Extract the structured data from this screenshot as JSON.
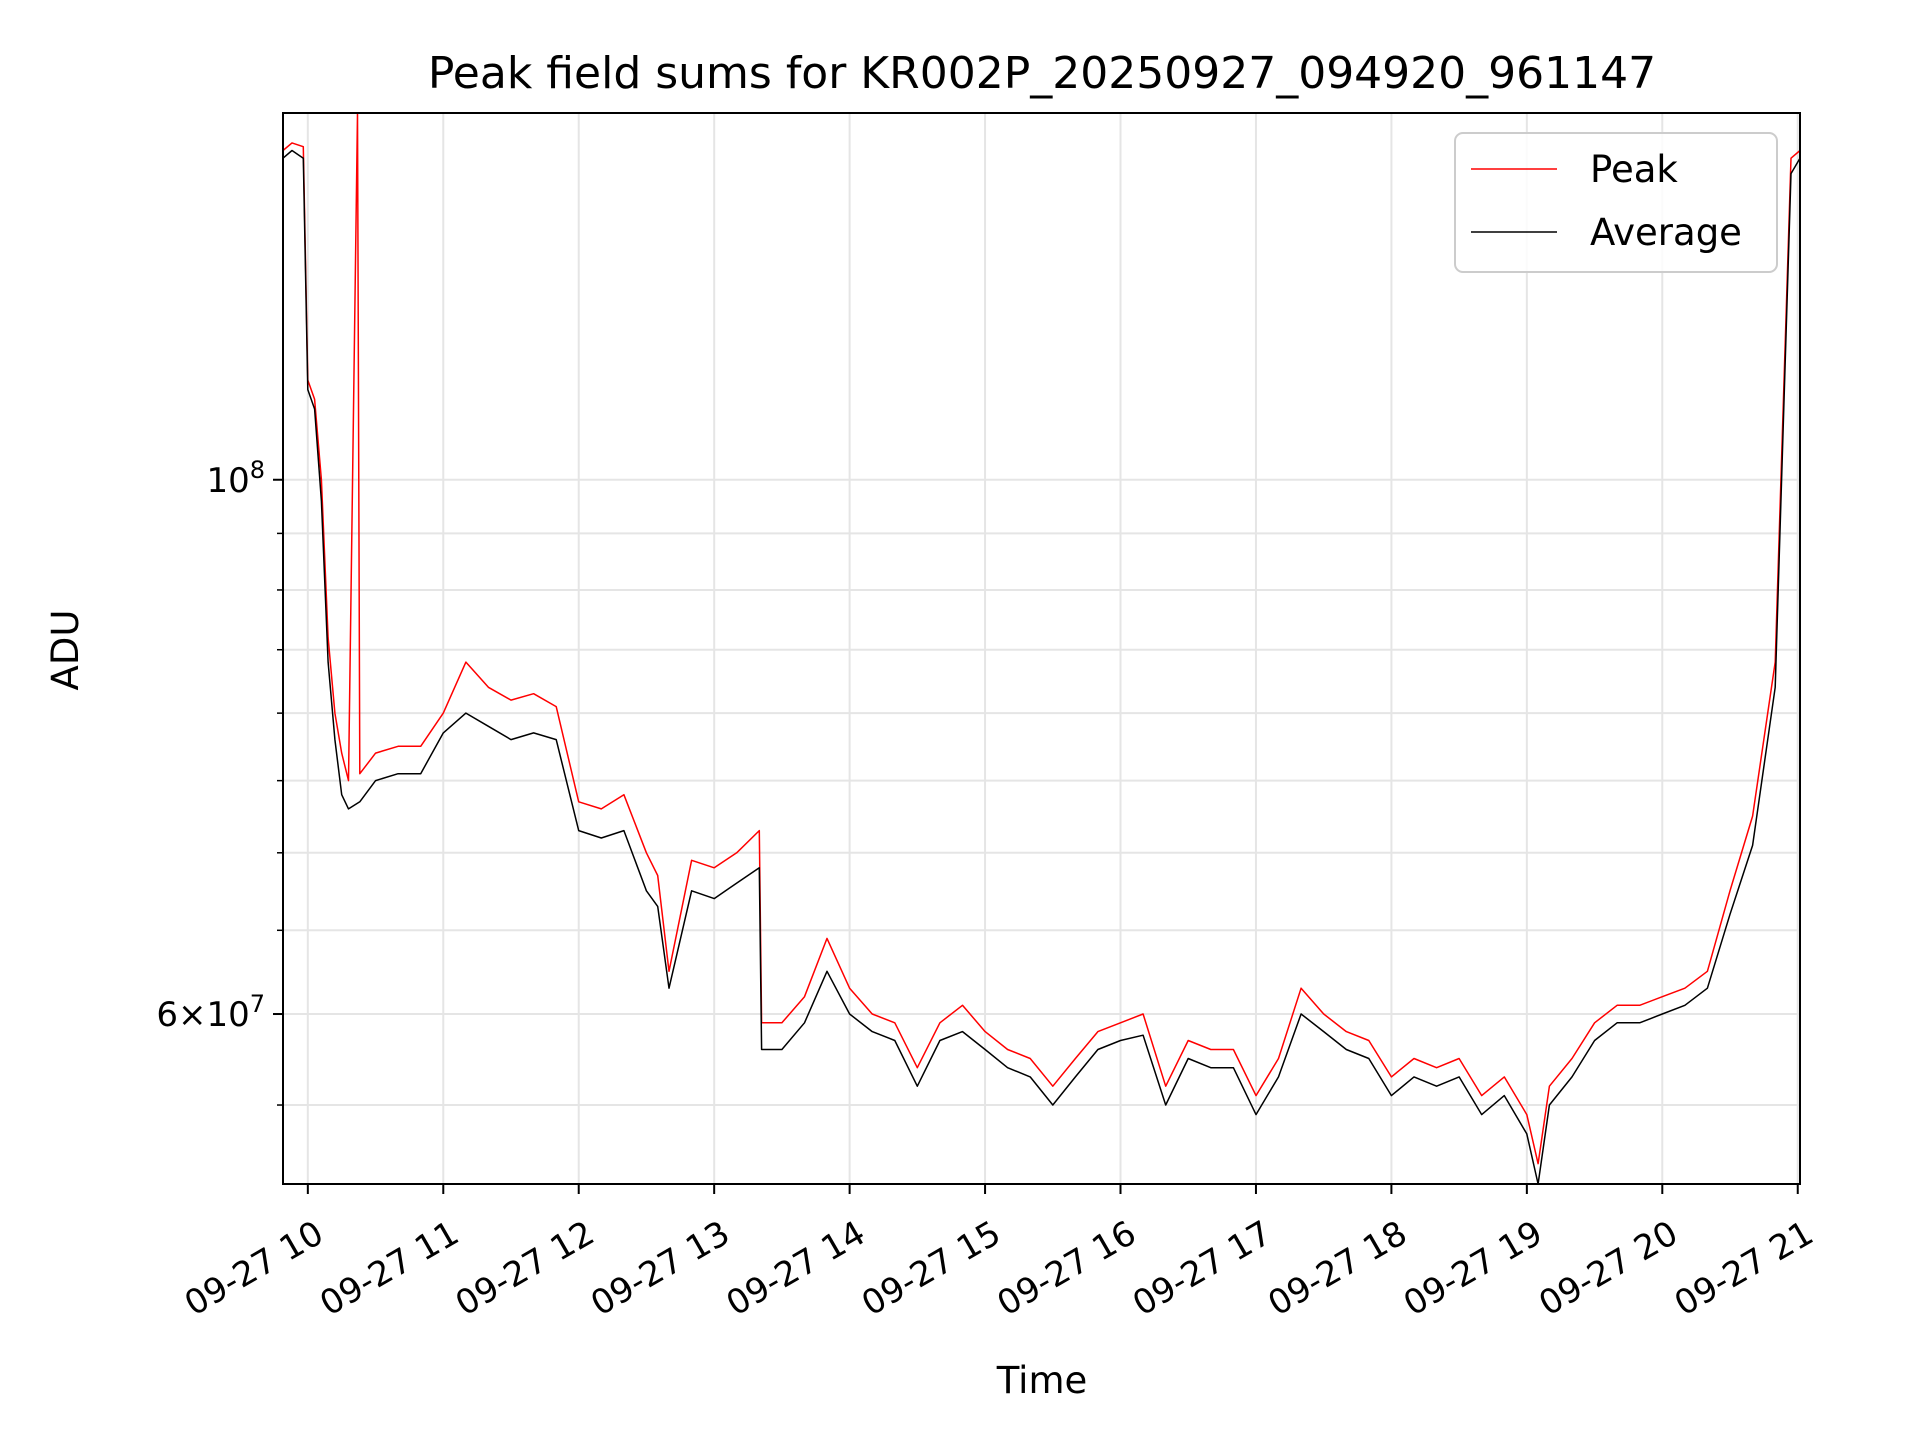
{
  "chart_data": {
    "type": "line",
    "title": "Peak field sums for KR002P_20250927_094920_961147",
    "xlabel": "Time",
    "ylabel": "ADU",
    "y_scale": "log",
    "grid": true,
    "legend_position": "top-right",
    "xlim": [
      "2025-09-27 09:49",
      "2025-09-27 21:01"
    ],
    "ylim": [
      51000000,
      142000000
    ],
    "x_ticks": [
      {
        "time": "2025-09-27 10:00",
        "label": "09-27 10"
      },
      {
        "time": "2025-09-27 11:00",
        "label": "09-27 11"
      },
      {
        "time": "2025-09-27 12:00",
        "label": "09-27 12"
      },
      {
        "time": "2025-09-27 13:00",
        "label": "09-27 13"
      },
      {
        "time": "2025-09-27 14:00",
        "label": "09-27 14"
      },
      {
        "time": "2025-09-27 15:00",
        "label": "09-27 15"
      },
      {
        "time": "2025-09-27 16:00",
        "label": "09-27 16"
      },
      {
        "time": "2025-09-27 17:00",
        "label": "09-27 17"
      },
      {
        "time": "2025-09-27 18:00",
        "label": "09-27 18"
      },
      {
        "time": "2025-09-27 19:00",
        "label": "09-27 19"
      },
      {
        "time": "2025-09-27 20:00",
        "label": "09-27 20"
      },
      {
        "time": "2025-09-27 21:00",
        "label": "09-27 21"
      }
    ],
    "y_major_ticks": [
      {
        "value": 100000000,
        "label_base": "10",
        "label_exp": "8"
      },
      {
        "value": 60000000,
        "label_base": "6×10",
        "label_exp": "7"
      }
    ],
    "y_minor_ticks": [
      55000000,
      65000000,
      70000000,
      75000000,
      80000000,
      85000000,
      90000000,
      95000000
    ],
    "series": [
      {
        "name": "Peak",
        "color": "#ff0000",
        "points": [
          [
            "2025-09-27 09:49",
            137000000
          ],
          [
            "2025-09-27 09:53",
            138000000
          ],
          [
            "2025-09-27 09:58",
            137500000
          ],
          [
            "2025-09-27 10:00",
            110000000
          ],
          [
            "2025-09-27 10:03",
            108000000
          ],
          [
            "2025-09-27 10:06",
            100000000
          ],
          [
            "2025-09-27 10:09",
            86000000
          ],
          [
            "2025-09-27 10:12",
            80000000
          ],
          [
            "2025-09-27 10:15",
            77000000
          ],
          [
            "2025-09-27 10:18",
            75000000
          ],
          [
            "2025-09-27 10:22",
            142000000
          ],
          [
            "2025-09-27 10:23",
            75500000
          ],
          [
            "2025-09-27 10:30",
            77000000
          ],
          [
            "2025-09-27 10:40",
            77500000
          ],
          [
            "2025-09-27 10:50",
            77500000
          ],
          [
            "2025-09-27 11:00",
            80000000
          ],
          [
            "2025-09-27 11:10",
            84000000
          ],
          [
            "2025-09-27 11:20",
            82000000
          ],
          [
            "2025-09-27 11:30",
            81000000
          ],
          [
            "2025-09-27 11:40",
            81500000
          ],
          [
            "2025-09-27 11:50",
            80500000
          ],
          [
            "2025-09-27 12:00",
            73500000
          ],
          [
            "2025-09-27 12:10",
            73000000
          ],
          [
            "2025-09-27 12:20",
            74000000
          ],
          [
            "2025-09-27 12:30",
            70000000
          ],
          [
            "2025-09-27 12:35",
            68500000
          ],
          [
            "2025-09-27 12:40",
            62500000
          ],
          [
            "2025-09-27 12:50",
            69500000
          ],
          [
            "2025-09-27 13:00",
            69000000
          ],
          [
            "2025-09-27 13:10",
            70000000
          ],
          [
            "2025-09-27 13:20",
            71500000
          ],
          [
            "2025-09-27 13:21",
            59500000
          ],
          [
            "2025-09-27 13:30",
            59500000
          ],
          [
            "2025-09-27 13:40",
            61000000
          ],
          [
            "2025-09-27 13:50",
            64500000
          ],
          [
            "2025-09-27 14:00",
            61500000
          ],
          [
            "2025-09-27 14:10",
            60000000
          ],
          [
            "2025-09-27 14:20",
            59500000
          ],
          [
            "2025-09-27 14:30",
            57000000
          ],
          [
            "2025-09-27 14:40",
            59500000
          ],
          [
            "2025-09-27 14:50",
            60500000
          ],
          [
            "2025-09-27 15:00",
            59000000
          ],
          [
            "2025-09-27 15:10",
            58000000
          ],
          [
            "2025-09-27 15:20",
            57500000
          ],
          [
            "2025-09-27 15:30",
            56000000
          ],
          [
            "2025-09-27 15:40",
            57500000
          ],
          [
            "2025-09-27 15:50",
            59000000
          ],
          [
            "2025-09-27 16:00",
            59500000
          ],
          [
            "2025-09-27 16:10",
            60000000
          ],
          [
            "2025-09-27 16:20",
            56000000
          ],
          [
            "2025-09-27 16:30",
            58500000
          ],
          [
            "2025-09-27 16:40",
            58000000
          ],
          [
            "2025-09-27 16:50",
            58000000
          ],
          [
            "2025-09-27 17:00",
            55500000
          ],
          [
            "2025-09-27 17:10",
            57500000
          ],
          [
            "2025-09-27 17:20",
            61500000
          ],
          [
            "2025-09-27 17:30",
            60000000
          ],
          [
            "2025-09-27 17:40",
            59000000
          ],
          [
            "2025-09-27 17:50",
            58500000
          ],
          [
            "2025-09-27 18:00",
            56500000
          ],
          [
            "2025-09-27 18:10",
            57500000
          ],
          [
            "2025-09-27 18:20",
            57000000
          ],
          [
            "2025-09-27 18:30",
            57500000
          ],
          [
            "2025-09-27 18:40",
            55500000
          ],
          [
            "2025-09-27 18:50",
            56500000
          ],
          [
            "2025-09-27 19:00",
            54500000
          ],
          [
            "2025-09-27 19:05",
            52000000
          ],
          [
            "2025-09-27 19:10",
            56000000
          ],
          [
            "2025-09-27 19:20",
            57500000
          ],
          [
            "2025-09-27 19:30",
            59500000
          ],
          [
            "2025-09-27 19:40",
            60500000
          ],
          [
            "2025-09-27 19:50",
            60500000
          ],
          [
            "2025-09-27 20:00",
            61000000
          ],
          [
            "2025-09-27 20:10",
            61500000
          ],
          [
            "2025-09-27 20:20",
            62500000
          ],
          [
            "2025-09-27 20:30",
            67500000
          ],
          [
            "2025-09-27 20:40",
            72500000
          ],
          [
            "2025-09-27 20:50",
            84000000
          ],
          [
            "2025-09-27 20:57",
            136000000
          ],
          [
            "2025-09-27 21:01",
            137000000
          ]
        ]
      },
      {
        "name": "Average",
        "color": "#000000",
        "points": [
          [
            "2025-09-27 09:49",
            136000000
          ],
          [
            "2025-09-27 09:53",
            137000000
          ],
          [
            "2025-09-27 09:58",
            136000000
          ],
          [
            "2025-09-27 10:00",
            109000000
          ],
          [
            "2025-09-27 10:03",
            107000000
          ],
          [
            "2025-09-27 10:06",
            98000000
          ],
          [
            "2025-09-27 10:09",
            84000000
          ],
          [
            "2025-09-27 10:12",
            78000000
          ],
          [
            "2025-09-27 10:15",
            74000000
          ],
          [
            "2025-09-27 10:18",
            73000000
          ],
          [
            "2025-09-27 10:23",
            73500000
          ],
          [
            "2025-09-27 10:30",
            75000000
          ],
          [
            "2025-09-27 10:40",
            75500000
          ],
          [
            "2025-09-27 10:50",
            75500000
          ],
          [
            "2025-09-27 11:00",
            78500000
          ],
          [
            "2025-09-27 11:10",
            80000000
          ],
          [
            "2025-09-27 11:20",
            79000000
          ],
          [
            "2025-09-27 11:30",
            78000000
          ],
          [
            "2025-09-27 11:40",
            78500000
          ],
          [
            "2025-09-27 11:50",
            78000000
          ],
          [
            "2025-09-27 12:00",
            71500000
          ],
          [
            "2025-09-27 12:10",
            71000000
          ],
          [
            "2025-09-27 12:20",
            71500000
          ],
          [
            "2025-09-27 12:30",
            67500000
          ],
          [
            "2025-09-27 12:35",
            66500000
          ],
          [
            "2025-09-27 12:40",
            61500000
          ],
          [
            "2025-09-27 12:50",
            67500000
          ],
          [
            "2025-09-27 13:00",
            67000000
          ],
          [
            "2025-09-27 13:10",
            68000000
          ],
          [
            "2025-09-27 13:20",
            69000000
          ],
          [
            "2025-09-27 13:21",
            58000000
          ],
          [
            "2025-09-27 13:30",
            58000000
          ],
          [
            "2025-09-27 13:40",
            59500000
          ],
          [
            "2025-09-27 13:50",
            62500000
          ],
          [
            "2025-09-27 14:00",
            60000000
          ],
          [
            "2025-09-27 14:10",
            59000000
          ],
          [
            "2025-09-27 14:20",
            58500000
          ],
          [
            "2025-09-27 14:30",
            56000000
          ],
          [
            "2025-09-27 14:40",
            58500000
          ],
          [
            "2025-09-27 14:50",
            59000000
          ],
          [
            "2025-09-27 15:00",
            58000000
          ],
          [
            "2025-09-27 15:10",
            57000000
          ],
          [
            "2025-09-27 15:20",
            56500000
          ],
          [
            "2025-09-27 15:30",
            55000000
          ],
          [
            "2025-09-27 15:40",
            56500000
          ],
          [
            "2025-09-27 15:50",
            58000000
          ],
          [
            "2025-09-27 16:00",
            58500000
          ],
          [
            "2025-09-27 16:10",
            58800000
          ],
          [
            "2025-09-27 16:20",
            55000000
          ],
          [
            "2025-09-27 16:30",
            57500000
          ],
          [
            "2025-09-27 16:40",
            57000000
          ],
          [
            "2025-09-27 16:50",
            57000000
          ],
          [
            "2025-09-27 17:00",
            54500000
          ],
          [
            "2025-09-27 17:10",
            56500000
          ],
          [
            "2025-09-27 17:20",
            60000000
          ],
          [
            "2025-09-27 17:30",
            59000000
          ],
          [
            "2025-09-27 17:40",
            58000000
          ],
          [
            "2025-09-27 17:50",
            57500000
          ],
          [
            "2025-09-27 18:00",
            55500000
          ],
          [
            "2025-09-27 18:10",
            56500000
          ],
          [
            "2025-09-27 18:20",
            56000000
          ],
          [
            "2025-09-27 18:30",
            56500000
          ],
          [
            "2025-09-27 18:40",
            54500000
          ],
          [
            "2025-09-27 18:50",
            55500000
          ],
          [
            "2025-09-27 19:00",
            53500000
          ],
          [
            "2025-09-27 19:05",
            51000000
          ],
          [
            "2025-09-27 19:10",
            55000000
          ],
          [
            "2025-09-27 19:20",
            56500000
          ],
          [
            "2025-09-27 19:30",
            58500000
          ],
          [
            "2025-09-27 19:40",
            59500000
          ],
          [
            "2025-09-27 19:50",
            59500000
          ],
          [
            "2025-09-27 20:00",
            60000000
          ],
          [
            "2025-09-27 20:10",
            60500000
          ],
          [
            "2025-09-27 20:20",
            61500000
          ],
          [
            "2025-09-27 20:30",
            66000000
          ],
          [
            "2025-09-27 20:40",
            70500000
          ],
          [
            "2025-09-27 20:50",
            82000000
          ],
          [
            "2025-09-27 20:57",
            134000000
          ],
          [
            "2025-09-27 21:01",
            136000000
          ]
        ]
      }
    ]
  }
}
